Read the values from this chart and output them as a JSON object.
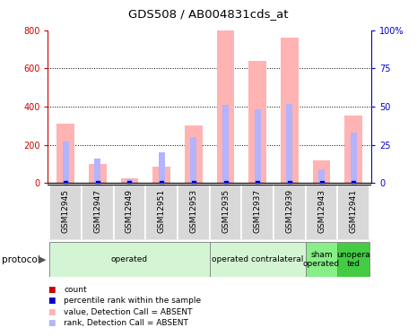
{
  "title": "GDS508 / AB004831cds_at",
  "samples": [
    "GSM12945",
    "GSM12947",
    "GSM12949",
    "GSM12951",
    "GSM12953",
    "GSM12935",
    "GSM12937",
    "GSM12939",
    "GSM12943",
    "GSM12941"
  ],
  "value_absent": [
    310,
    100,
    25,
    85,
    300,
    800,
    640,
    760,
    120,
    355
  ],
  "rank_absent_pct": [
    27,
    16,
    2.5,
    20,
    30,
    51,
    48,
    52,
    9,
    33
  ],
  "ylim": [
    0,
    800
  ],
  "y2lim": [
    0,
    100
  ],
  "yticks": [
    0,
    200,
    400,
    600,
    800
  ],
  "y2ticks": [
    0,
    25,
    50,
    75,
    100
  ],
  "y2labels": [
    "0",
    "25",
    "50",
    "75",
    "100%"
  ],
  "protocol_groups": [
    {
      "label": "operated",
      "start": 0,
      "end": 5,
      "color": "#d4f5d4"
    },
    {
      "label": "operated contralateral",
      "start": 5,
      "end": 8,
      "color": "#d4f5d4"
    },
    {
      "label": "sham\noperated",
      "start": 8,
      "end": 9,
      "color": "#88ee88"
    },
    {
      "label": "unopera\nted",
      "start": 9,
      "end": 10,
      "color": "#44cc44"
    }
  ],
  "value_color": "#ffb3b3",
  "rank_color": "#b3b3ff",
  "count_color": "#cc0000",
  "percentile_color": "#0000cc",
  "left_axis_color": "#cc0000",
  "right_axis_color": "#0000cc",
  "sample_bg_color": "#d8d8d8",
  "sample_bg_edge": "#ffffff"
}
